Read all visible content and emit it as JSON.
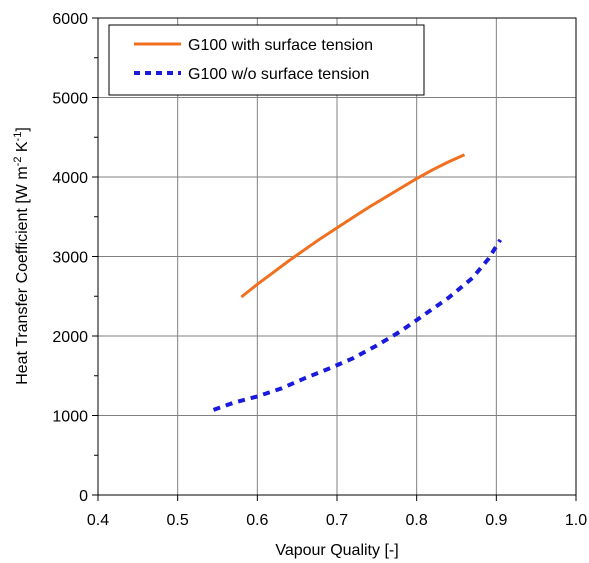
{
  "chart_data": {
    "type": "line",
    "xlabel": "Vapour Quality [-]",
    "ylabel_parts": [
      "Heat Transfer Coefficient [W m",
      "-2",
      " K",
      "-1",
      "]"
    ],
    "xlim": [
      0.4,
      1.0
    ],
    "ylim": [
      0,
      6000
    ],
    "xticks": [
      "0.4",
      "0.5",
      "0.6",
      "0.7",
      "0.8",
      "0.9",
      "1.0"
    ],
    "yticks": [
      "0",
      "1000",
      "2000",
      "3000",
      "4000",
      "5000",
      "6000"
    ],
    "grid": true,
    "legend_position": "top-left",
    "series": [
      {
        "name": "G100 with surface tension",
        "color": "#f07020",
        "style": "solid",
        "x": [
          0.58,
          0.6,
          0.62,
          0.64,
          0.66,
          0.68,
          0.7,
          0.72,
          0.74,
          0.76,
          0.78,
          0.8,
          0.82,
          0.84,
          0.86
        ],
        "y": [
          2490,
          2650,
          2800,
          2950,
          3090,
          3230,
          3360,
          3490,
          3620,
          3740,
          3860,
          3980,
          4090,
          4190,
          4280
        ]
      },
      {
        "name": "G100 w/o surface tension",
        "color": "#1a1adc",
        "style": "dashed",
        "x": [
          0.545,
          0.57,
          0.6,
          0.63,
          0.66,
          0.69,
          0.72,
          0.75,
          0.78,
          0.81,
          0.84,
          0.87,
          0.89,
          0.905
        ],
        "y": [
          1070,
          1160,
          1240,
          1340,
          1470,
          1590,
          1720,
          1880,
          2060,
          2270,
          2480,
          2730,
          2970,
          3210
        ]
      }
    ]
  }
}
